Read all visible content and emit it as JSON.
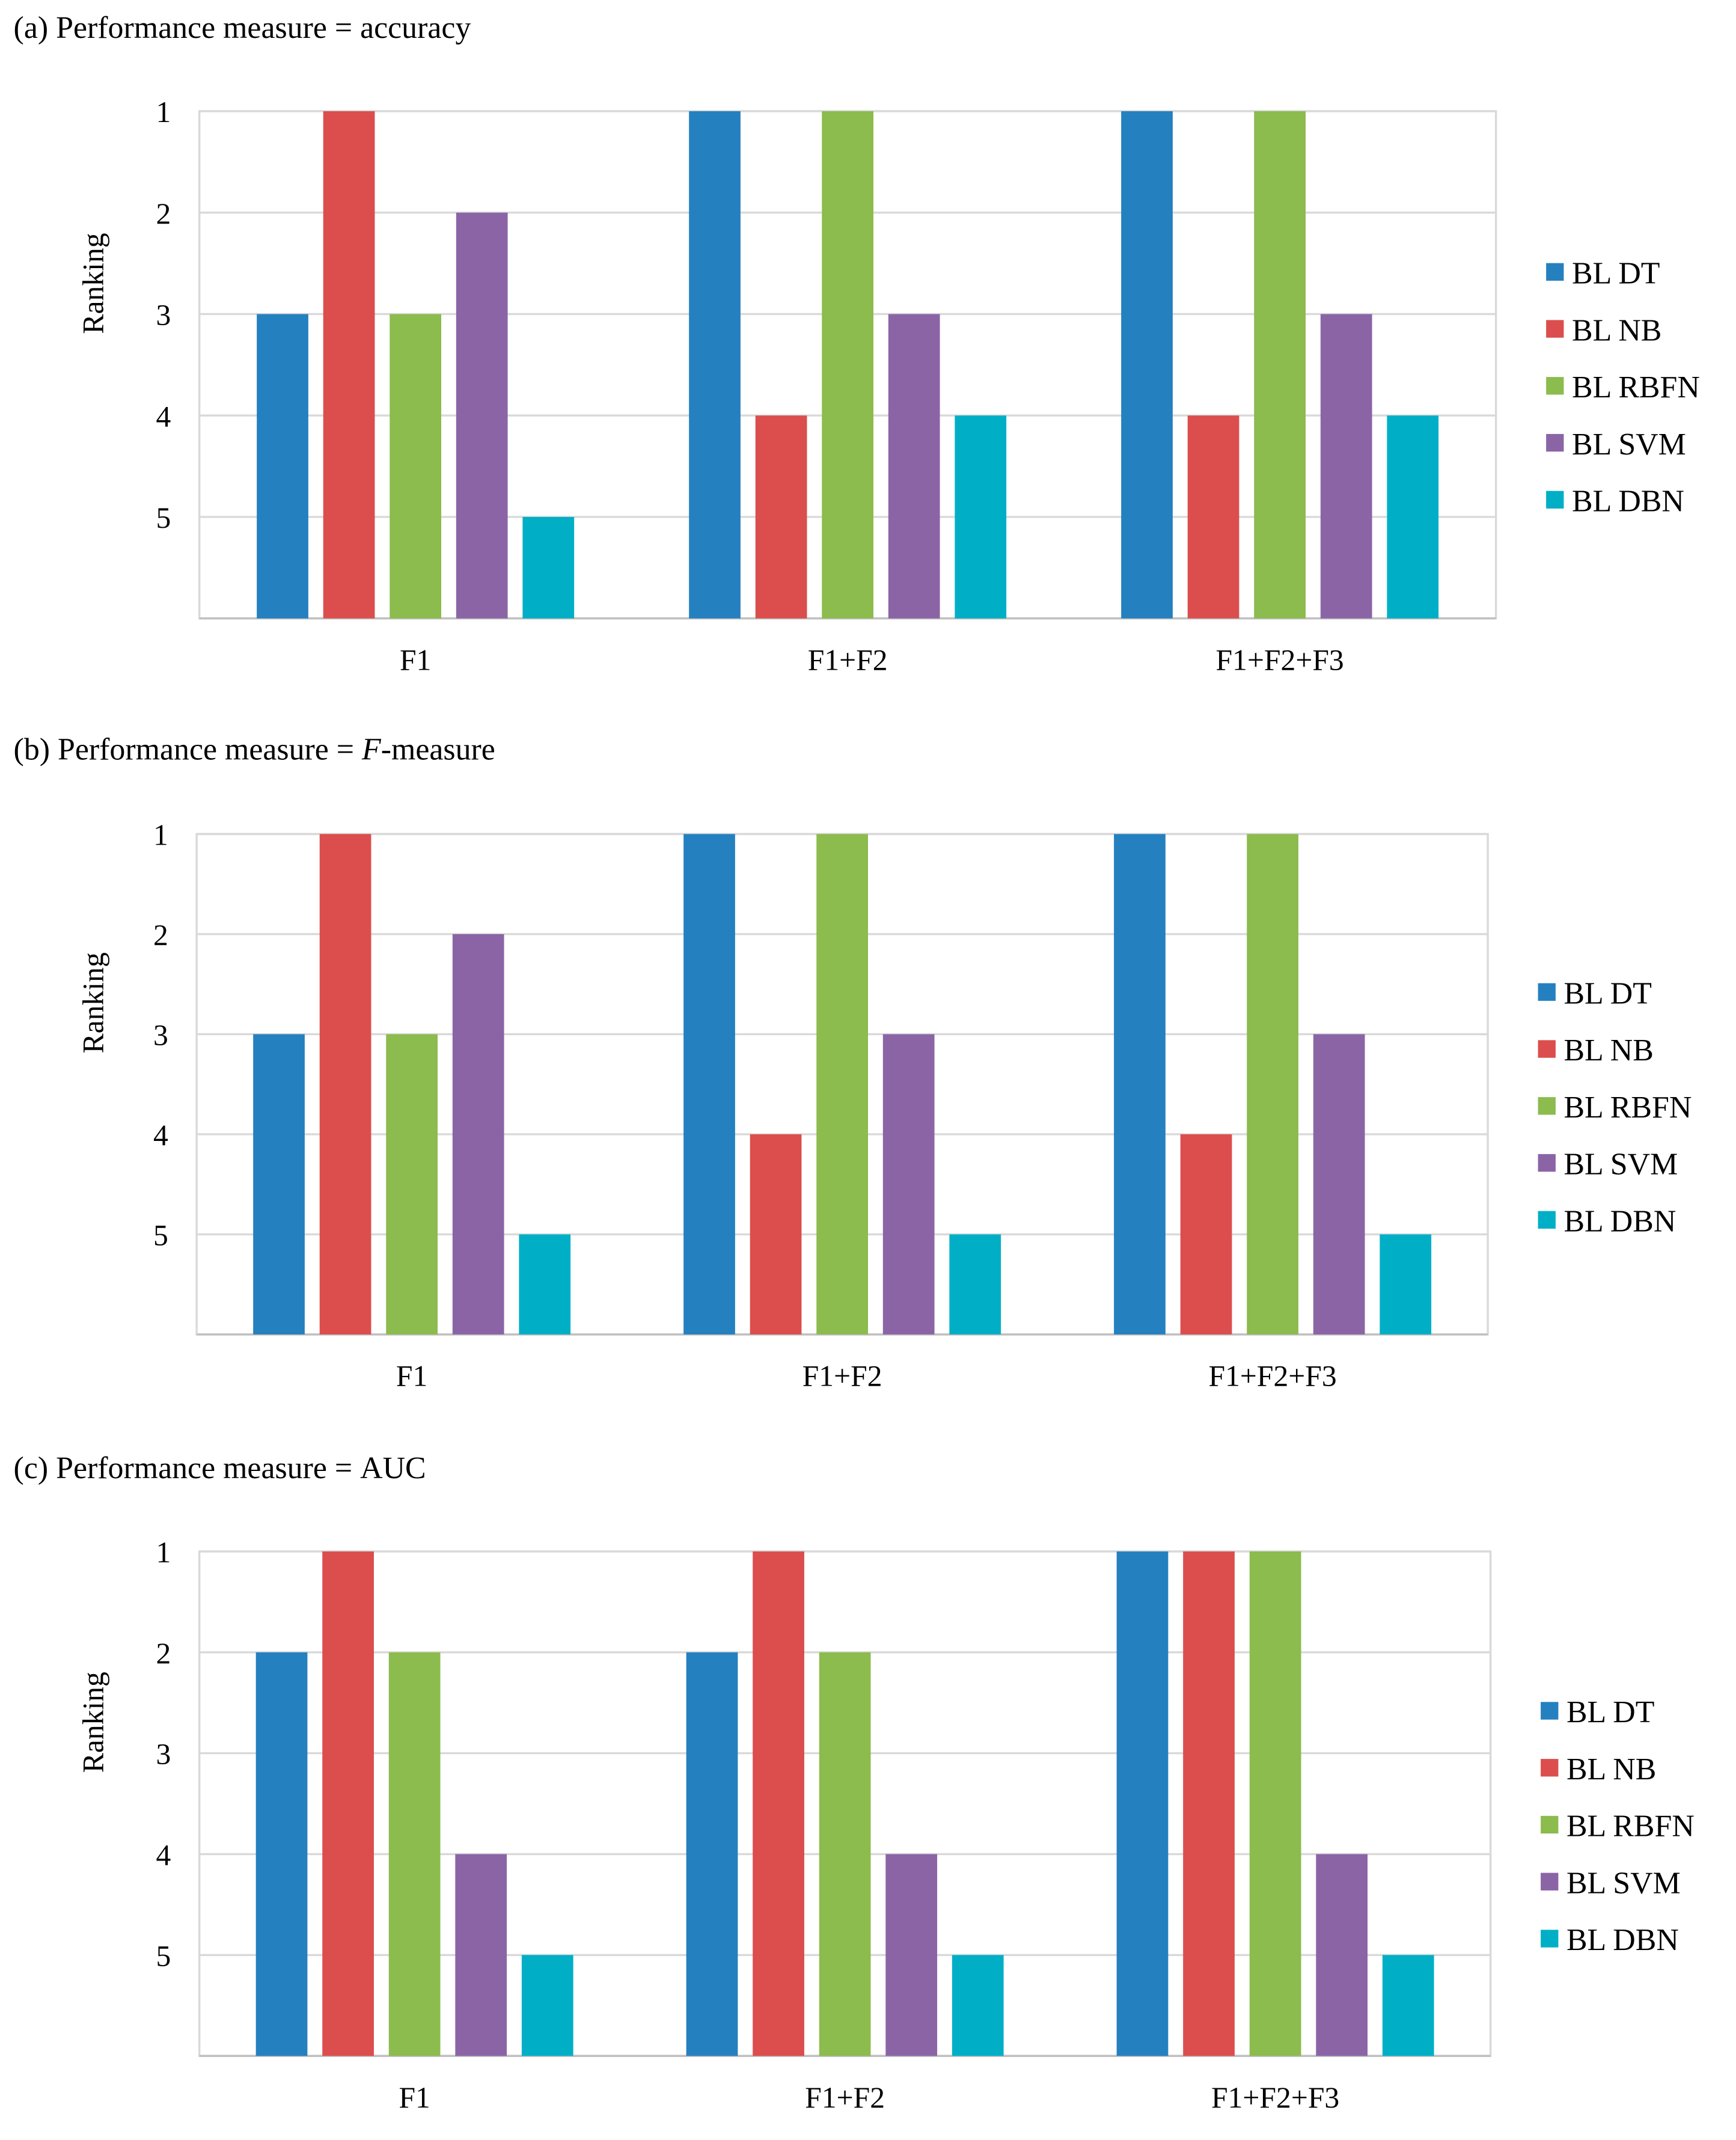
{
  "legend_colors": {
    "BL DT": "#2580C0",
    "BL NB": "#DB4E4D",
    "BL RBFN": "#8CBB4E",
    "BL SVM": "#8B64A6",
    "BL DBN": "#00AFC6"
  },
  "chart_data": [
    {
      "type": "bar",
      "title_prefix": "(a) Performance measure = ",
      "title_italic": "",
      "title_suffix": "accuracy",
      "ylabel": "Ranking",
      "xlabel": "",
      "yticks": [
        "1",
        "2",
        "3",
        "4",
        "5"
      ],
      "ylim": [
        6,
        1
      ],
      "y_inverted": true,
      "grid": true,
      "legend_position": "right",
      "categories": [
        "F1",
        "F1+F2",
        "F1+F2+F3"
      ],
      "series": [
        {
          "name": "BL DT",
          "values": [
            3,
            1,
            1
          ]
        },
        {
          "name": "BL NB",
          "values": [
            1,
            4,
            4
          ]
        },
        {
          "name": "BL RBFN",
          "values": [
            3,
            1,
            1
          ]
        },
        {
          "name": "BL SVM",
          "values": [
            2,
            3,
            3
          ]
        },
        {
          "name": "BL DBN",
          "values": [
            5,
            4,
            4
          ]
        }
      ]
    },
    {
      "type": "bar",
      "title_prefix": "(b) Performance measure = ",
      "title_italic": "F",
      "title_suffix": "-measure",
      "ylabel": "Ranking",
      "xlabel": "",
      "yticks": [
        "1",
        "2",
        "3",
        "4",
        "5"
      ],
      "ylim": [
        6,
        1
      ],
      "y_inverted": true,
      "grid": true,
      "legend_position": "right",
      "categories": [
        "F1",
        "F1+F2",
        "F1+F2+F3"
      ],
      "series": [
        {
          "name": "BL DT",
          "values": [
            3,
            1,
            1
          ]
        },
        {
          "name": "BL NB",
          "values": [
            1,
            4,
            4
          ]
        },
        {
          "name": "BL RBFN",
          "values": [
            3,
            1,
            1
          ]
        },
        {
          "name": "BL SVM",
          "values": [
            2,
            3,
            3
          ]
        },
        {
          "name": "BL DBN",
          "values": [
            5,
            5,
            5
          ]
        }
      ]
    },
    {
      "type": "bar",
      "title_prefix": "(c) Performance measure = ",
      "title_italic": "",
      "title_suffix": "AUC",
      "ylabel": "Ranking",
      "xlabel": "",
      "yticks": [
        "1",
        "2",
        "3",
        "4",
        "5"
      ],
      "ylim": [
        6,
        1
      ],
      "y_inverted": true,
      "grid": true,
      "legend_position": "right",
      "categories": [
        "F1",
        "F1+F2",
        "F1+F2+F3"
      ],
      "series": [
        {
          "name": "BL DT",
          "values": [
            2,
            2,
            1
          ]
        },
        {
          "name": "BL NB",
          "values": [
            1,
            1,
            1
          ]
        },
        {
          "name": "BL RBFN",
          "values": [
            2,
            2,
            1
          ]
        },
        {
          "name": "BL SVM",
          "values": [
            4,
            4,
            4
          ]
        },
        {
          "name": "BL DBN",
          "values": [
            5,
            5,
            5
          ]
        }
      ]
    }
  ]
}
